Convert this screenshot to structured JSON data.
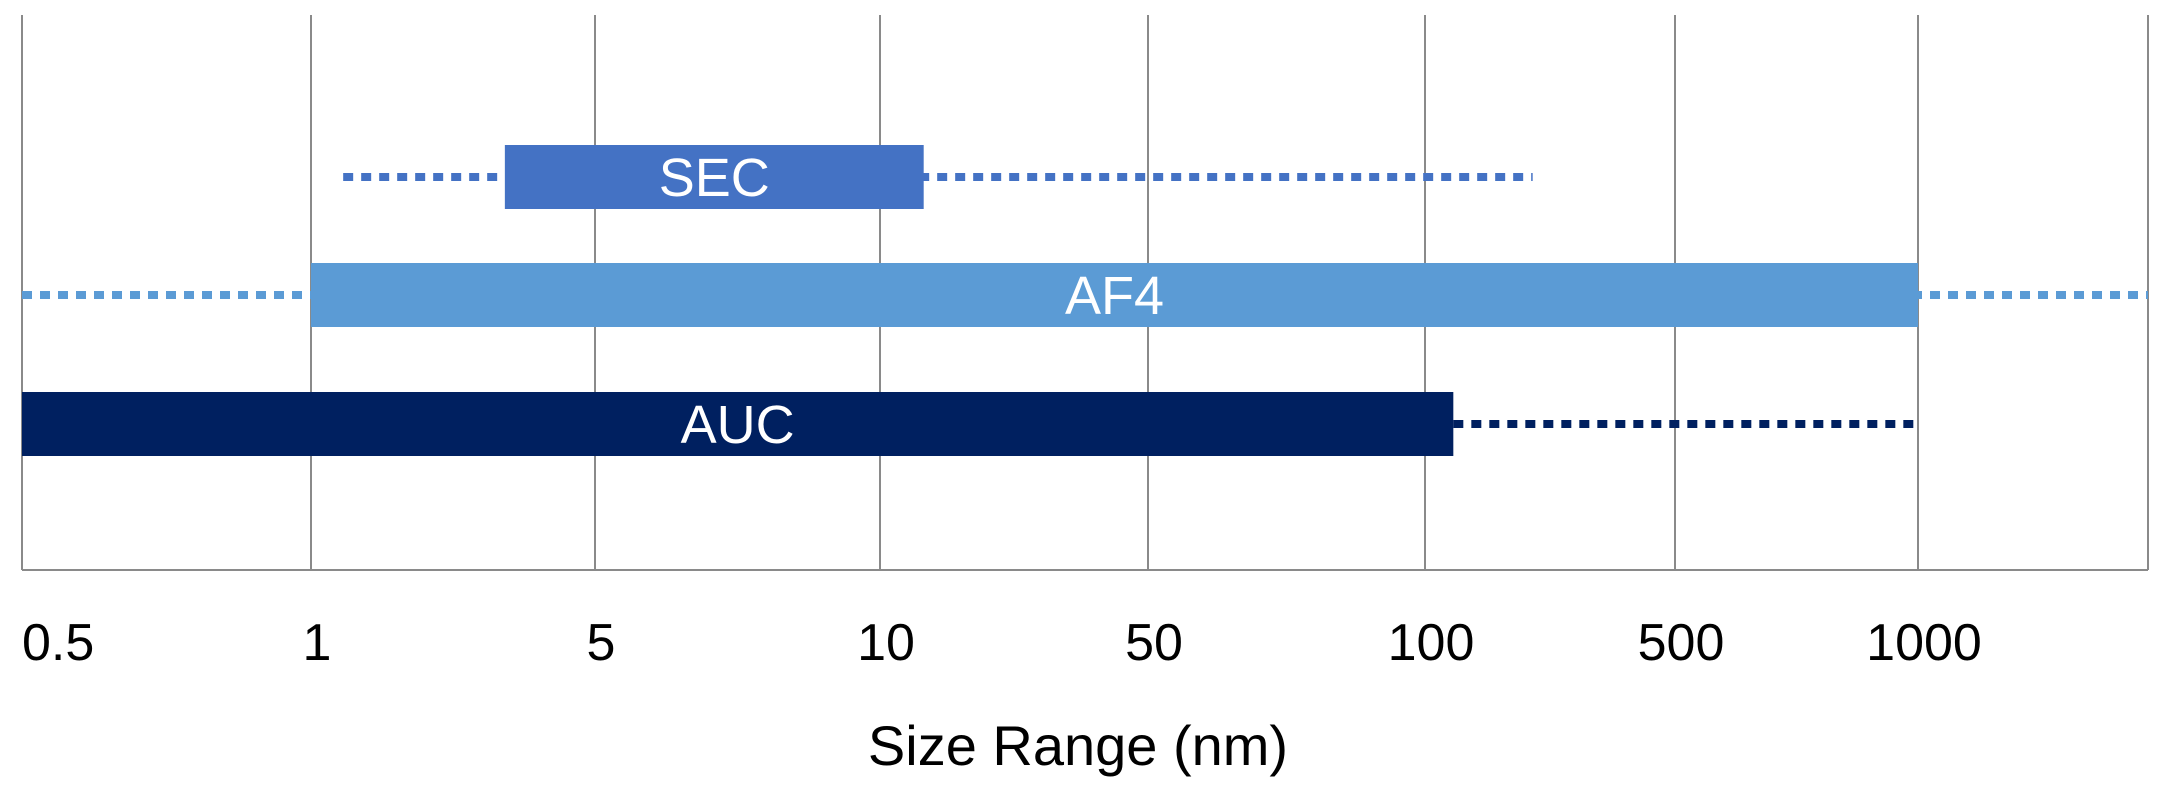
{
  "chart_data": {
    "type": "bar",
    "orientation": "horizontal-range",
    "xlabel": "Size Range (nm)",
    "ylabel": "",
    "title": "",
    "x_scale": "categorical-log",
    "tick_labels": [
      "0.5",
      "1",
      "5",
      "10",
      "50",
      "100",
      "500",
      "1000"
    ],
    "grid": true,
    "series": [
      {
        "name": "SEC",
        "label": "SEC",
        "solid_range": [
          3,
          13
        ],
        "dotted_range": [
          1.2,
          200
        ],
        "color": "#4472c4"
      },
      {
        "name": "AF4",
        "label": "AF4",
        "solid_range": [
          1,
          1000
        ],
        "dotted_range": [
          0.5,
          5000
        ],
        "color": "#5b9bd5"
      },
      {
        "name": "AUC",
        "label": "AUC",
        "solid_range": [
          0.5,
          120
        ],
        "dotted_range": [
          120,
          1000
        ],
        "color": "#002060"
      }
    ]
  }
}
